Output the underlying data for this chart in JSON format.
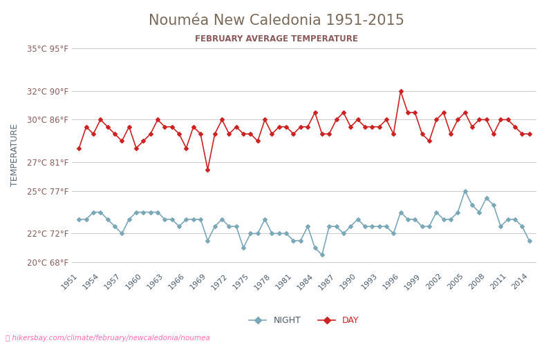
{
  "title": "Nouméa New Caledonia 1951-2015",
  "subtitle": "FEBRUARY AVERAGE TEMPERATURE",
  "ylabel": "TEMPERATURE",
  "watermark": "hikersbay.com/climate/february/newcaledonia/noumea",
  "title_color": "#7a6a5a",
  "subtitle_color": "#8b5a5a",
  "ylabel_color": "#5a6a7a",
  "bg_color": "#ffffff",
  "grid_color": "#cccccc",
  "years": [
    1951,
    1952,
    1953,
    1954,
    1955,
    1956,
    1957,
    1958,
    1959,
    1960,
    1961,
    1962,
    1963,
    1964,
    1965,
    1966,
    1967,
    1968,
    1969,
    1970,
    1971,
    1972,
    1973,
    1974,
    1975,
    1976,
    1977,
    1978,
    1979,
    1980,
    1981,
    1982,
    1983,
    1984,
    1985,
    1986,
    1987,
    1988,
    1989,
    1990,
    1991,
    1992,
    1993,
    1994,
    1995,
    1996,
    1997,
    1998,
    1999,
    2000,
    2001,
    2002,
    2003,
    2004,
    2005,
    2006,
    2007,
    2008,
    2009,
    2010,
    2011,
    2012,
    2013,
    2014
  ],
  "day_temps": [
    28.0,
    29.5,
    29.0,
    30.0,
    29.5,
    29.0,
    28.5,
    29.5,
    28.0,
    28.5,
    29.0,
    30.0,
    29.5,
    29.5,
    29.0,
    28.0,
    29.5,
    29.0,
    26.5,
    29.0,
    30.0,
    29.0,
    29.5,
    29.0,
    29.0,
    28.5,
    30.0,
    29.0,
    29.5,
    29.5,
    29.0,
    29.5,
    29.5,
    30.5,
    29.0,
    29.0,
    30.0,
    30.5,
    29.5,
    30.0,
    29.5,
    29.5,
    29.5,
    30.0,
    29.0,
    32.0,
    30.5,
    30.5,
    29.0,
    28.5,
    30.0,
    30.5,
    29.0,
    30.0,
    30.5,
    29.5,
    30.0,
    30.0,
    29.0,
    30.0,
    30.0,
    29.5,
    29.0,
    29.0
  ],
  "night_temps": [
    23.0,
    23.0,
    23.5,
    23.5,
    23.0,
    22.5,
    22.0,
    23.0,
    23.5,
    23.5,
    23.5,
    23.5,
    23.0,
    23.0,
    22.5,
    23.0,
    23.0,
    23.0,
    21.5,
    22.5,
    23.0,
    22.5,
    22.5,
    21.0,
    22.0,
    22.0,
    23.0,
    22.0,
    22.0,
    22.0,
    21.5,
    21.5,
    22.5,
    21.0,
    20.5,
    22.5,
    22.5,
    22.0,
    22.5,
    23.0,
    22.5,
    22.5,
    22.5,
    22.5,
    22.0,
    23.5,
    23.0,
    23.0,
    22.5,
    22.5,
    23.5,
    23.0,
    23.0,
    23.5,
    25.0,
    24.0,
    23.5,
    24.5,
    24.0,
    22.5,
    23.0,
    23.0,
    22.5,
    21.5
  ],
  "day_color": "#cc2222",
  "night_color": "#7aa8b8",
  "marker_size": 3,
  "ylim_min": 19.5,
  "ylim_max": 35.5,
  "yticks_c": [
    20,
    22,
    25,
    27,
    30,
    32,
    35
  ],
  "yticks_f": [
    68,
    72,
    77,
    81,
    86,
    90,
    95
  ],
  "xtick_years": [
    1951,
    1954,
    1957,
    1960,
    1963,
    1966,
    1969,
    1972,
    1975,
    1978,
    1981,
    1984,
    1987,
    1990,
    1993,
    1996,
    1999,
    2002,
    2005,
    2008,
    2011,
    2014
  ]
}
